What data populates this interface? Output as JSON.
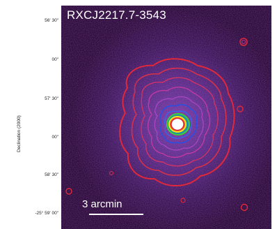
{
  "figure": {
    "title": "RXCJ2217.7-3543",
    "y_axis_label": "Declination (2000)",
    "y_ticks": [
      "56' 30\"",
      "00\"",
      "57' 30\"",
      "00\"",
      "58' 30\"",
      "-25° 59' 00\""
    ],
    "scale_bar_label": "3 arcmin"
  },
  "colors": {
    "background": "#2a0a38",
    "outer_contour": "#e0283a",
    "mid_contour": "#c03aa0",
    "inner_contour": "#2b4fe0",
    "core_contour_green": "#3ccf3c",
    "core_contour_yellow": "#f4e61c",
    "core": "#ffffff"
  }
}
